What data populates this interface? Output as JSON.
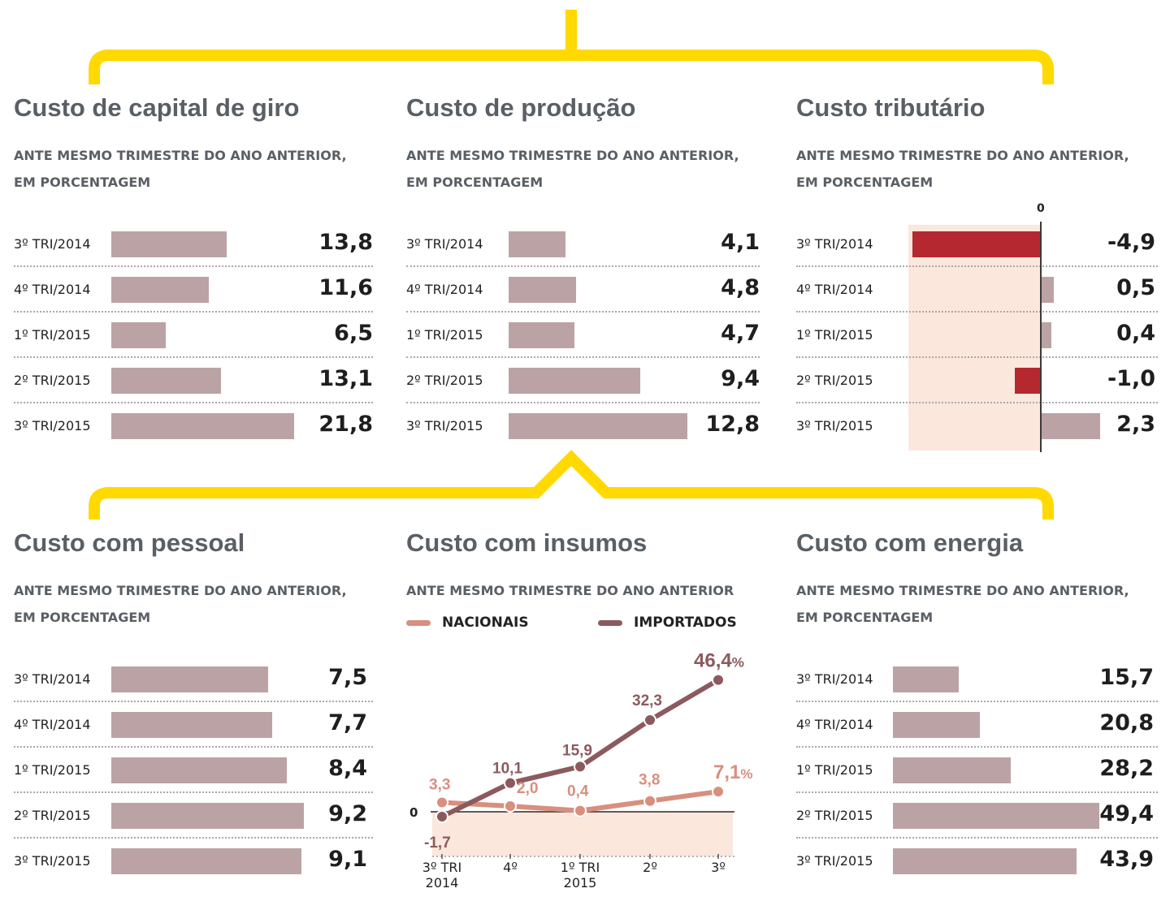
{
  "colors": {
    "accent": "#ffd900",
    "bar": "#bba3a5",
    "negative_bar": "#b52830",
    "shade": "#fbe7dc",
    "nacionais": "#d88f7e",
    "importados": "#8c5a5e",
    "title": "#595f65"
  },
  "chart_data": [
    {
      "type": "bar",
      "orientation": "horizontal",
      "title": "Custo de capital de giro",
      "subtitle_lines": [
        "ANTE MESMO TRIMESTRE DO ANO ANTERIOR,",
        "EM PORCENTAGEM"
      ],
      "categories": [
        "3º TRI/2014",
        "4º TRI/2014",
        "1º TRI/2015",
        "2º TRI/2015",
        "3º TRI/2015"
      ],
      "values": [
        13.8,
        11.6,
        6.5,
        13.1,
        21.8
      ],
      "labels": [
        "13,8",
        "11,6",
        "6,5",
        "13,1",
        "21,8"
      ],
      "xlim": [
        0,
        21.8
      ]
    },
    {
      "type": "bar",
      "orientation": "horizontal",
      "title": "Custo de produção",
      "subtitle_lines": [
        "ANTE MESMO TRIMESTRE DO ANO ANTERIOR,",
        "EM PORCENTAGEM"
      ],
      "categories": [
        "3º TRI/2014",
        "4º TRI/2014",
        "1º TRI/2015",
        "2º TRI/2015",
        "3º TRI/2015"
      ],
      "values": [
        4.1,
        4.8,
        4.7,
        9.4,
        12.8
      ],
      "labels": [
        "4,1",
        "4,8",
        "4,7",
        "9,4",
        "12,8"
      ],
      "xlim": [
        0,
        12.8
      ]
    },
    {
      "type": "bar",
      "orientation": "horizontal",
      "title": "Custo tributário",
      "subtitle_lines": [
        "ANTE MESMO TRIMESTRE DO ANO ANTERIOR,",
        "EM PORCENTAGEM"
      ],
      "categories": [
        "3º TRI/2014",
        "4º TRI/2014",
        "1º TRI/2015",
        "2º TRI/2015",
        "3º TRI/2015"
      ],
      "values": [
        -4.9,
        0.5,
        0.4,
        -1.0,
        2.3
      ],
      "labels": [
        "-4,9",
        "0,5",
        "0,4",
        "-1,0",
        "2,3"
      ],
      "zero_label": "0",
      "xlim": [
        -4.9,
        2.3
      ]
    },
    {
      "type": "bar",
      "orientation": "horizontal",
      "title": "Custo com pessoal",
      "subtitle_lines": [
        "ANTE MESMO TRIMESTRE DO ANO ANTERIOR,",
        "EM PORCENTAGEM"
      ],
      "categories": [
        "3º TRI/2014",
        "4º TRI/2014",
        "1º TRI/2015",
        "2º TRI/2015",
        "3º TRI/2015"
      ],
      "values": [
        7.5,
        7.7,
        8.4,
        9.2,
        9.1
      ],
      "labels": [
        "7,5",
        "7,7",
        "8,4",
        "9,2",
        "9,1"
      ],
      "xlim": [
        0,
        9.2
      ]
    },
    {
      "type": "line",
      "title": "Custo com insumos",
      "subtitle_lines": [
        "ANTE MESMO TRIMESTRE DO ANO ANTERIOR"
      ],
      "x_labels": [
        [
          "3º TRI",
          "2014"
        ],
        [
          "4º"
        ],
        [
          "1º TRI",
          "2015"
        ],
        [
          "2º"
        ],
        [
          "3º"
        ]
      ],
      "zero_label": "0",
      "unit_label": "%",
      "series": [
        {
          "name": "NACIONAIS",
          "values": [
            3.3,
            2.0,
            0.4,
            3.8,
            7.1
          ],
          "labels": [
            "3,3",
            "2,0",
            "0,4",
            "3,8",
            "7,1"
          ]
        },
        {
          "name": "IMPORTADOS",
          "values": [
            -1.7,
            10.1,
            15.9,
            32.3,
            46.4
          ],
          "labels": [
            "-1,7",
            "10,1",
            "15,9",
            "32,3",
            "46,4"
          ]
        }
      ],
      "ylim": [
        -17,
        46.4
      ]
    },
    {
      "type": "bar",
      "orientation": "horizontal",
      "title": "Custo com energia",
      "subtitle_lines": [
        "ANTE MESMO TRIMESTRE DO ANO ANTERIOR,",
        "EM PORCENTAGEM"
      ],
      "categories": [
        "3º TRI/2014",
        "4º TRI/2014",
        "1º TRI/2015",
        "2º TRI/2015",
        "3º TRI/2015"
      ],
      "values": [
        15.7,
        20.8,
        28.2,
        49.4,
        43.9
      ],
      "labels": [
        "15,7",
        "20,8",
        "28,2",
        "49,4",
        "43,9"
      ],
      "xlim": [
        0,
        49.4
      ]
    }
  ]
}
